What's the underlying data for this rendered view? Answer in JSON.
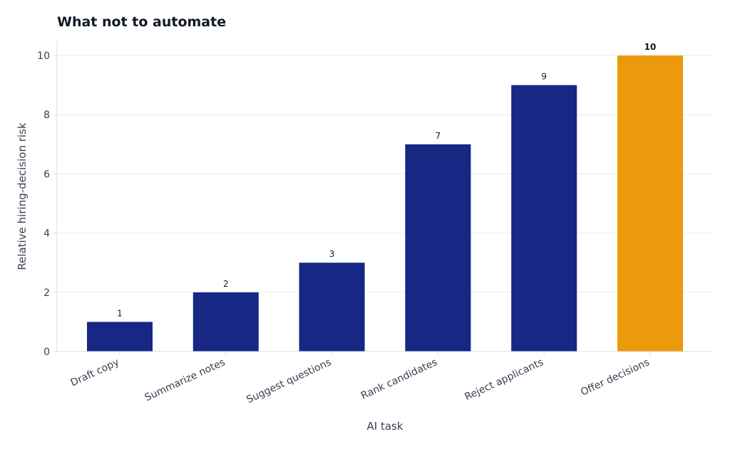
{
  "chart_data": {
    "type": "bar",
    "title": "What not to automate",
    "xlabel": "AI task",
    "ylabel": "Relative hiring-decision risk",
    "categories": [
      "Draft copy",
      "Summarize notes",
      "Suggest questions",
      "Rank candidates",
      "Reject applicants",
      "Offer decisions"
    ],
    "values": [
      1,
      2,
      3,
      7,
      9,
      10
    ],
    "ylim": [
      0,
      10.5
    ],
    "yticks": [
      0,
      2,
      4,
      6,
      8,
      10
    ],
    "grid": true,
    "colors": {
      "default_bar": "#162784",
      "highlight_bar": "#EA9A0A",
      "highlight_label": "#E0920A"
    },
    "highlight_index": 5
  }
}
